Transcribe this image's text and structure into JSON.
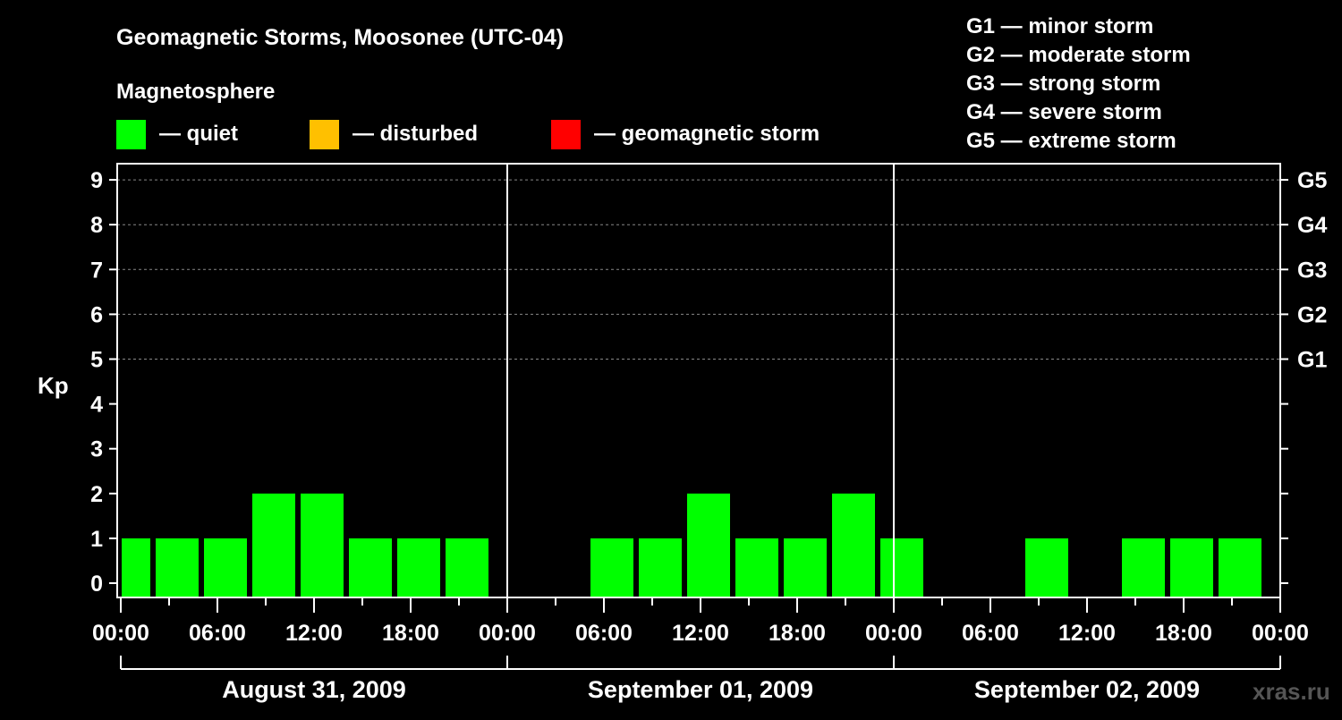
{
  "chart_data": {
    "type": "bar",
    "title": "Geomagnetic Storms, Moosonee (UTC-04)",
    "legend_title": "Magnetosphere",
    "legend": [
      {
        "label": "— quiet",
        "color": "#00ff00"
      },
      {
        "label": "— disturbed",
        "color": "#ffc000"
      },
      {
        "label": "— geomagnetic storm",
        "color": "#ff0000"
      }
    ],
    "storm_scale": [
      "G1 — minor storm",
      "G2 — moderate storm",
      "G3 — strong storm",
      "G4 — severe storm",
      "G5 — extreme storm"
    ],
    "ylabel": "Kp",
    "ylim": [
      0,
      9
    ],
    "yticks": [
      "0",
      "1",
      "2",
      "3",
      "4",
      "5",
      "6",
      "7",
      "8",
      "9"
    ],
    "right_ticks": [
      {
        "kp": 5,
        "label": "G1"
      },
      {
        "kp": 6,
        "label": "G2"
      },
      {
        "kp": 7,
        "label": "G3"
      },
      {
        "kp": 8,
        "label": "G4"
      },
      {
        "kp": 9,
        "label": "G5"
      }
    ],
    "grid": true,
    "xticks": [
      "00:00",
      "06:00",
      "12:00",
      "18:00",
      "00:00",
      "06:00",
      "12:00",
      "18:00",
      "00:00",
      "06:00",
      "12:00",
      "18:00",
      "00:00"
    ],
    "days": [
      "August 31, 2009",
      "September 01, 2009",
      "September 02, 2009"
    ],
    "bars_note": "start/end in hours from August 31, 2009 00:00 local",
    "bars": [
      {
        "start": 0,
        "end": 2,
        "kp": 1
      },
      {
        "start": 2,
        "end": 5,
        "kp": 1
      },
      {
        "start": 5,
        "end": 8,
        "kp": 1
      },
      {
        "start": 8,
        "end": 11,
        "kp": 2
      },
      {
        "start": 11,
        "end": 14,
        "kp": 2
      },
      {
        "start": 14,
        "end": 17,
        "kp": 1
      },
      {
        "start": 17,
        "end": 20,
        "kp": 1
      },
      {
        "start": 20,
        "end": 23,
        "kp": 1
      },
      {
        "start": 29,
        "end": 32,
        "kp": 1
      },
      {
        "start": 32,
        "end": 35,
        "kp": 1
      },
      {
        "start": 35,
        "end": 38,
        "kp": 2
      },
      {
        "start": 38,
        "end": 41,
        "kp": 1
      },
      {
        "start": 41,
        "end": 44,
        "kp": 1
      },
      {
        "start": 44,
        "end": 47,
        "kp": 2
      },
      {
        "start": 47,
        "end": 50,
        "kp": 1
      },
      {
        "start": 56,
        "end": 59,
        "kp": 1
      },
      {
        "start": 62,
        "end": 65,
        "kp": 1
      },
      {
        "start": 65,
        "end": 68,
        "kp": 1
      },
      {
        "start": 68,
        "end": 71,
        "kp": 1
      }
    ],
    "bar_color": "#00ff00"
  },
  "watermark": "xras.ru"
}
